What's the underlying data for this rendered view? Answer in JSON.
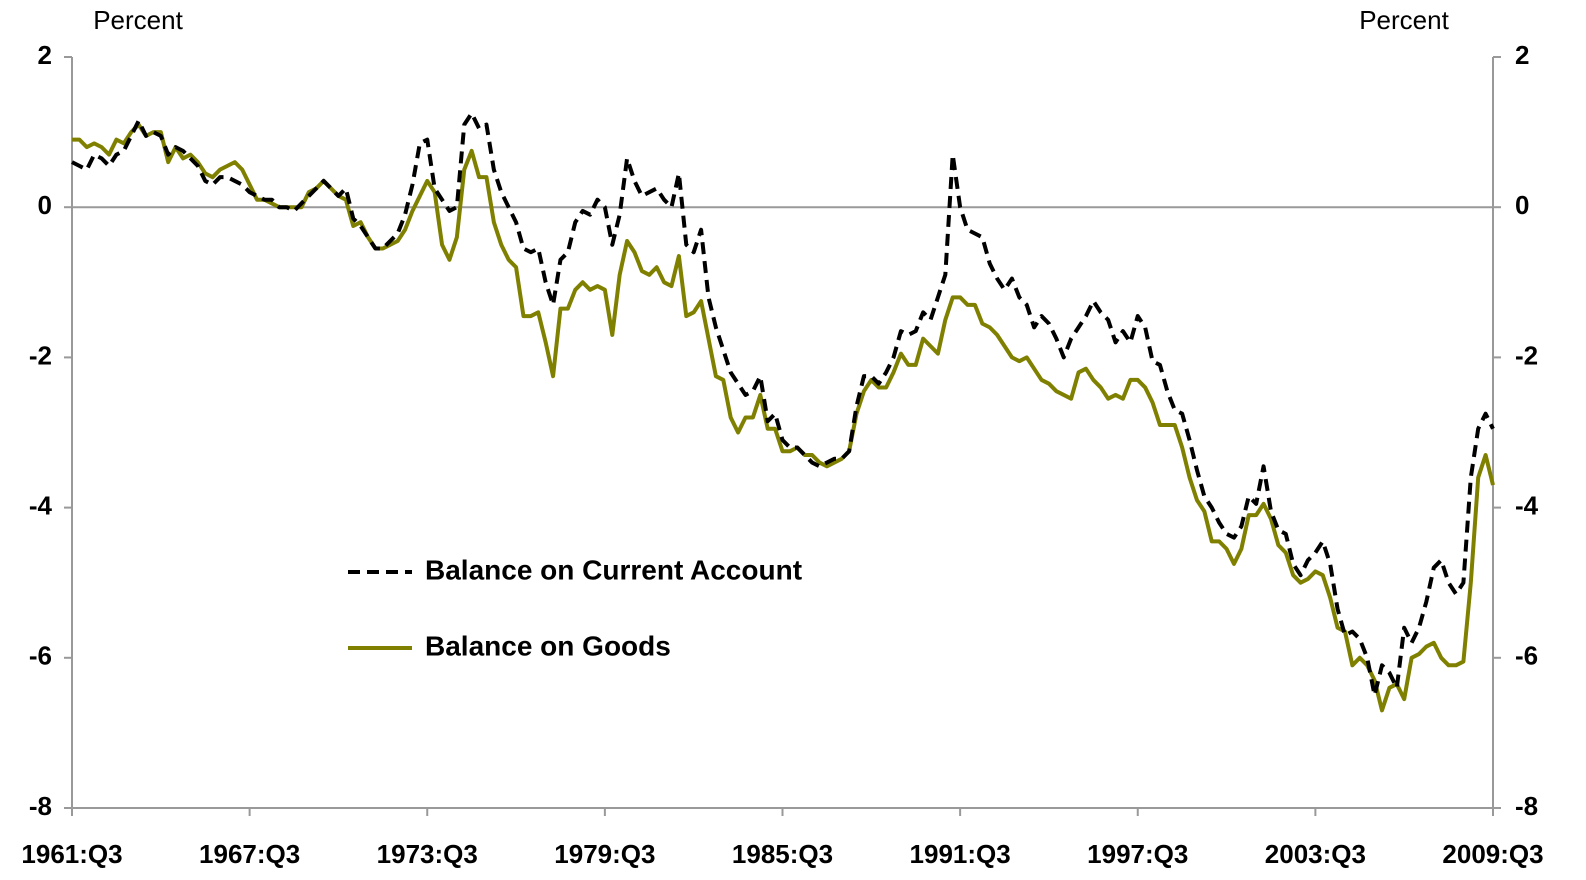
{
  "chart_data": {
    "type": "line",
    "y_axis_label": "Percent",
    "y2_axis_label": "Percent",
    "categories": [
      "1961:Q3",
      null,
      null,
      null,
      null,
      null,
      null,
      null,
      null,
      null,
      null,
      null,
      null,
      null,
      null,
      null,
      null,
      null,
      null,
      null,
      null,
      null,
      null,
      null,
      "1967:Q3",
      null,
      null,
      null,
      null,
      null,
      null,
      null,
      null,
      null,
      null,
      null,
      null,
      null,
      null,
      null,
      null,
      null,
      null,
      null,
      null,
      null,
      null,
      null,
      "1973:Q3",
      null,
      null,
      null,
      null,
      null,
      null,
      null,
      null,
      null,
      null,
      null,
      null,
      null,
      null,
      null,
      null,
      null,
      null,
      null,
      null,
      null,
      null,
      null,
      "1979:Q3",
      null,
      null,
      null,
      null,
      null,
      null,
      null,
      null,
      null,
      null,
      null,
      null,
      null,
      null,
      null,
      null,
      null,
      null,
      null,
      null,
      null,
      null,
      null,
      "1985:Q3",
      null,
      null,
      null,
      null,
      null,
      null,
      null,
      null,
      null,
      null,
      null,
      null,
      null,
      null,
      null,
      null,
      null,
      null,
      null,
      null,
      null,
      null,
      null,
      "1991:Q3",
      null,
      null,
      null,
      null,
      null,
      null,
      null,
      null,
      null,
      null,
      null,
      null,
      null,
      null,
      null,
      null,
      null,
      null,
      null,
      null,
      null,
      null,
      null,
      "1997:Q3",
      null,
      null,
      null,
      null,
      null,
      null,
      null,
      null,
      null,
      null,
      null,
      null,
      null,
      null,
      null,
      null,
      null,
      null,
      null,
      null,
      null,
      null,
      null,
      "2003:Q3",
      null,
      null,
      null,
      null,
      null,
      null,
      null,
      null,
      null,
      null,
      null,
      null,
      null,
      null,
      null,
      null,
      null,
      null,
      null,
      null,
      null,
      null,
      null,
      "2009:Q3"
    ],
    "series": [
      {
        "name": "Balance on Current Account",
        "color": "#000000",
        "dashed": true,
        "values": [
          0.6,
          0.55,
          0.5,
          0.7,
          0.65,
          0.55,
          0.7,
          0.75,
          0.95,
          1.15,
          0.95,
          1.0,
          0.95,
          0.7,
          0.8,
          0.75,
          0.65,
          0.55,
          0.35,
          0.3,
          0.4,
          0.4,
          0.35,
          0.3,
          0.2,
          0.15,
          0.1,
          0.1,
          0.0,
          0.0,
          -0.05,
          0.05,
          0.15,
          0.25,
          0.35,
          0.25,
          0.15,
          0.25,
          -0.15,
          -0.25,
          -0.4,
          -0.55,
          -0.55,
          -0.45,
          -0.35,
          -0.1,
          0.3,
          0.85,
          0.9,
          0.25,
          0.1,
          -0.05,
          0.0,
          1.1,
          1.25,
          1.05,
          1.1,
          0.5,
          0.2,
          0.0,
          -0.2,
          -0.55,
          -0.6,
          -0.55,
          -1.0,
          -1.3,
          -0.7,
          -0.6,
          -0.2,
          -0.05,
          -0.1,
          0.1,
          0.0,
          -0.5,
          -0.1,
          0.65,
          0.35,
          0.15,
          0.2,
          0.25,
          0.1,
          0.0,
          0.45,
          -0.5,
          -0.6,
          -0.3,
          -1.2,
          -1.6,
          -1.9,
          -2.2,
          -2.35,
          -2.5,
          -2.45,
          -2.25,
          -2.85,
          -2.75,
          -3.1,
          -3.2,
          -3.2,
          -3.3,
          -3.4,
          -3.45,
          -3.4,
          -3.35,
          -3.35,
          -3.25,
          -2.65,
          -2.25,
          -2.25,
          -2.35,
          -2.2,
          -2.0,
          -1.65,
          -1.7,
          -1.65,
          -1.4,
          -1.5,
          -1.2,
          -0.9,
          0.7,
          0.0,
          -0.3,
          -0.35,
          -0.4,
          -0.75,
          -0.95,
          -1.1,
          -0.95,
          -1.2,
          -1.3,
          -1.6,
          -1.45,
          -1.55,
          -1.75,
          -2.0,
          -1.75,
          -1.6,
          -1.45,
          -1.25,
          -1.4,
          -1.5,
          -1.8,
          -1.65,
          -1.8,
          -1.45,
          -1.6,
          -2.05,
          -2.1,
          -2.45,
          -2.7,
          -2.75,
          -3.1,
          -3.5,
          -3.85,
          -4.0,
          -4.2,
          -4.35,
          -4.4,
          -4.25,
          -3.85,
          -3.95,
          -3.45,
          -4.05,
          -4.3,
          -4.35,
          -4.75,
          -4.9,
          -4.7,
          -4.6,
          -4.45,
          -4.75,
          -5.35,
          -5.7,
          -5.65,
          -5.75,
          -6.0,
          -6.5,
          -6.1,
          -6.2,
          -6.4,
          -5.6,
          -5.8,
          -5.6,
          -5.25,
          -4.8,
          -4.7,
          -5.0,
          -5.15,
          -5.0,
          -3.6,
          -2.95,
          -2.75,
          -2.95
        ]
      },
      {
        "name": "Balance on Goods",
        "color": "#808000",
        "dashed": false,
        "values": [
          0.9,
          0.9,
          0.8,
          0.85,
          0.8,
          0.7,
          0.9,
          0.85,
          1.0,
          1.1,
          0.95,
          1.0,
          1.0,
          0.6,
          0.8,
          0.65,
          0.7,
          0.6,
          0.45,
          0.4,
          0.5,
          0.55,
          0.6,
          0.5,
          0.3,
          0.1,
          0.1,
          0.05,
          0.0,
          0.0,
          0.0,
          0.0,
          0.2,
          0.25,
          0.35,
          0.25,
          0.15,
          0.1,
          -0.25,
          -0.2,
          -0.4,
          -0.55,
          -0.55,
          -0.5,
          -0.45,
          -0.3,
          -0.05,
          0.15,
          0.35,
          0.2,
          -0.5,
          -0.7,
          -0.4,
          0.5,
          0.75,
          0.4,
          0.4,
          -0.2,
          -0.5,
          -0.7,
          -0.8,
          -1.45,
          -1.45,
          -1.4,
          -1.8,
          -2.25,
          -1.35,
          -1.35,
          -1.1,
          -1.0,
          -1.1,
          -1.05,
          -1.1,
          -1.7,
          -0.9,
          -0.45,
          -0.6,
          -0.85,
          -0.9,
          -0.8,
          -1.0,
          -1.05,
          -0.65,
          -1.45,
          -1.4,
          -1.25,
          -1.75,
          -2.25,
          -2.3,
          -2.8,
          -3.0,
          -2.8,
          -2.8,
          -2.5,
          -2.95,
          -2.95,
          -3.25,
          -3.25,
          -3.2,
          -3.3,
          -3.3,
          -3.4,
          -3.45,
          -3.4,
          -3.35,
          -3.25,
          -2.75,
          -2.45,
          -2.3,
          -2.4,
          -2.4,
          -2.2,
          -1.95,
          -2.1,
          -2.1,
          -1.75,
          -1.85,
          -1.95,
          -1.5,
          -1.2,
          -1.2,
          -1.3,
          -1.3,
          -1.55,
          -1.6,
          -1.7,
          -1.85,
          -2.0,
          -2.05,
          -2.0,
          -2.15,
          -2.3,
          -2.35,
          -2.45,
          -2.5,
          -2.55,
          -2.2,
          -2.15,
          -2.3,
          -2.4,
          -2.55,
          -2.5,
          -2.55,
          -2.3,
          -2.3,
          -2.4,
          -2.6,
          -2.9,
          -2.9,
          -2.9,
          -3.2,
          -3.6,
          -3.9,
          -4.05,
          -4.45,
          -4.45,
          -4.55,
          -4.75,
          -4.55,
          -4.1,
          -4.1,
          -3.95,
          -4.15,
          -4.5,
          -4.6,
          -4.9,
          -5.0,
          -4.95,
          -4.85,
          -4.9,
          -5.2,
          -5.6,
          -5.65,
          -6.1,
          -6.0,
          -6.1,
          -6.3,
          -6.7,
          -6.4,
          -6.35,
          -6.55,
          -6.0,
          -5.95,
          -5.85,
          -5.8,
          -6.0,
          -6.1,
          -6.1,
          -6.05,
          -5.0,
          -3.6,
          -3.3,
          -3.7
        ]
      }
    ],
    "ylim": [
      -8,
      2
    ],
    "yticks": [
      -8,
      -6,
      -4,
      -2,
      0,
      2
    ],
    "y2lim": [
      -8,
      2
    ],
    "y2ticks": [
      -8,
      -6,
      -4,
      -2,
      0,
      2
    ],
    "grid": false
  }
}
